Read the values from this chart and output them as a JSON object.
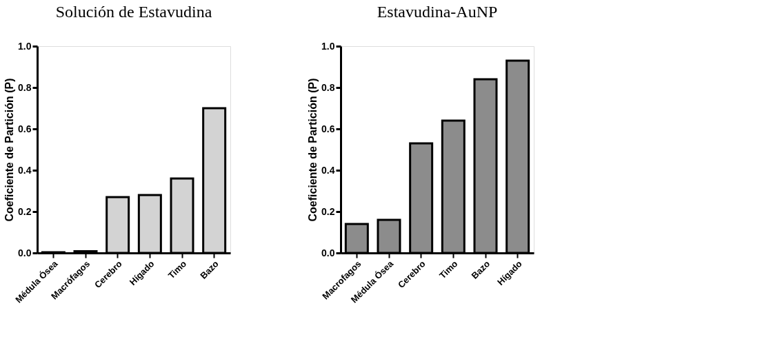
{
  "chart_data": [
    {
      "type": "bar",
      "title": "Solución de Estavudina",
      "ylabel": "Coeficiente de Partición (P)",
      "categories": [
        "Médula Ósea",
        "Macrófagos",
        "Cerebro",
        "Hígado",
        "Timo",
        "Bazo"
      ],
      "values": [
        0.003,
        0.008,
        0.27,
        0.28,
        0.36,
        0.7
      ],
      "color": "#d3d3d3",
      "ylim": [
        0,
        1
      ],
      "yticks": [
        {
          "value": 0,
          "label": "0.0"
        },
        {
          "value": 0.2,
          "label": "0.2"
        },
        {
          "value": 0.4,
          "label": "0.4"
        },
        {
          "value": 0.6,
          "label": "0.6"
        },
        {
          "value": 0.8,
          "label": "0.8"
        },
        {
          "value": 1,
          "label": "1.0"
        }
      ],
      "grid": false
    },
    {
      "type": "bar",
      "title": "Estavudina-AuNP",
      "ylabel": "Coeficiente de Partición (P)",
      "categories": [
        "Macrofagos",
        "Médula Ósea",
        "Cerebro",
        "Timo",
        "Bazo",
        "Hígado"
      ],
      "values": [
        0.14,
        0.16,
        0.53,
        0.64,
        0.84,
        0.93
      ],
      "color": "#8c8c8c",
      "ylim": [
        0,
        1
      ],
      "yticks": [
        {
          "value": 0,
          "label": "0.0"
        },
        {
          "value": 0.2,
          "label": "0.2"
        },
        {
          "value": 0.4,
          "label": "0.4"
        },
        {
          "value": 0.6,
          "label": "0.6"
        },
        {
          "value": 0.8,
          "label": "0.8"
        },
        {
          "value": 1,
          "label": "1.0"
        }
      ],
      "grid": false
    }
  ]
}
